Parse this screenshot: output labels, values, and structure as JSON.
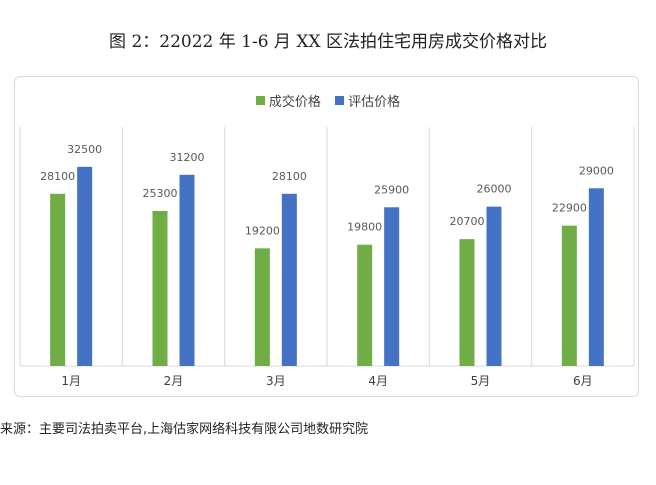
{
  "figure": {
    "title": "图 2：22022 年 1-6 月 XX 区法拍住宅用房成交价格对比",
    "source": "来源：主要司法拍卖平台,上海估家网络科技有限公司地数研究院"
  },
  "colors": {
    "deal": "#70ad47",
    "estimate": "#4472c4",
    "grid": "#d9d9d9",
    "label": "#595959"
  },
  "chart_data": {
    "type": "bar",
    "title": "",
    "categories": [
      "1月",
      "2月",
      "3月",
      "4月",
      "5月",
      "6月"
    ],
    "series": [
      {
        "name": "成交价格",
        "values": [
          28100,
          25300,
          19200,
          19800,
          20700,
          22900
        ]
      },
      {
        "name": "评估价格",
        "values": [
          32500,
          31200,
          28100,
          25900,
          26000,
          29000
        ]
      }
    ],
    "ylim": [
      0,
      39000
    ],
    "legend": "top",
    "grid": false,
    "category_separators": true
  }
}
